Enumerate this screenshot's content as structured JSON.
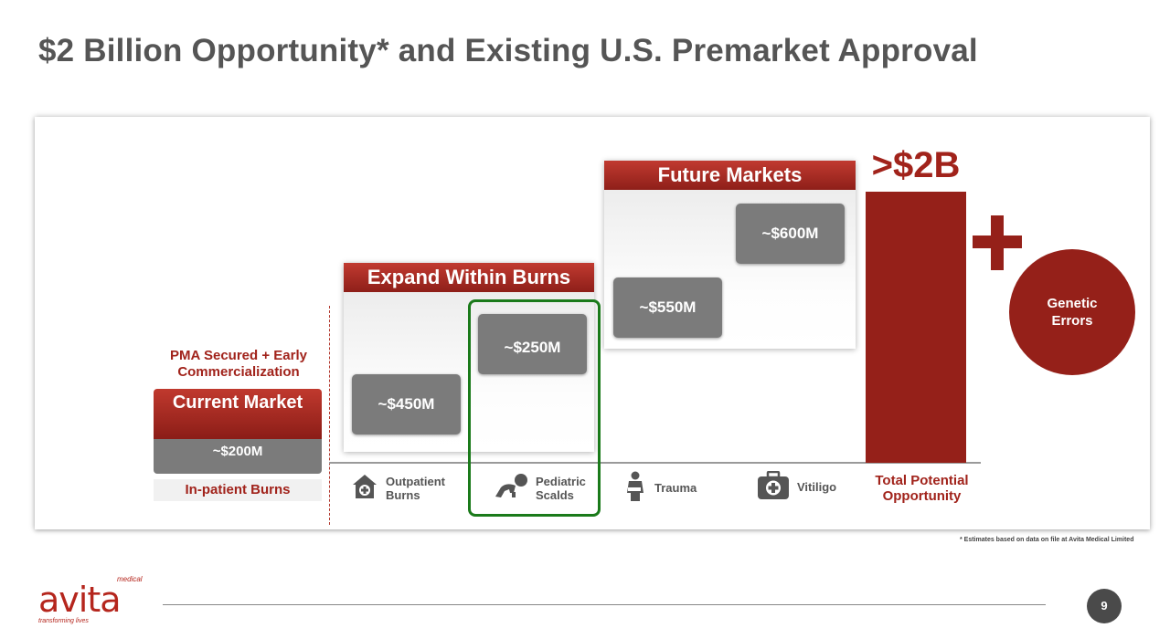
{
  "title": "$2 Billion Opportunity* and Existing U.S. Premarket Approval",
  "current_market": {
    "pma_note": "PMA Secured + Early Commercialization",
    "header": "Current Market",
    "value": "~$200M",
    "label": "In-patient Burns"
  },
  "expand_within_burns": {
    "header": "Expand Within Burns",
    "outpatient_value": "~$450M",
    "pediatric_value": "~$250M"
  },
  "future_markets": {
    "header": "Future Markets",
    "trauma_value": "~$550M",
    "vitiligo_value": "~$600M"
  },
  "categories": {
    "outpatient": "Outpatient Burns",
    "pediatric": "Pediatric Scalds",
    "trauma": "Trauma",
    "vitiligo": "Vitiligo"
  },
  "total": {
    "value": ">$2B",
    "caption": "Total Potential Opportunity"
  },
  "genetic_errors": "Genetic Errors",
  "footnote": "* Estimates based on data on file at Avita Medical Limited",
  "logo": {
    "word": "avita",
    "superscript": "medical",
    "tagline": "transforming lives"
  },
  "page_number": "9",
  "colors": {
    "brand_red": "#a1231b",
    "bar_red": "#952019",
    "value_grey": "#7b7b7b",
    "highlight_green": "#1a7a1a"
  },
  "icons": {
    "outpatient": "clinic-house-icon",
    "pediatric": "crawling-baby-icon",
    "trauma": "injured-person-icon",
    "vitiligo": "first-aid-kit-icon"
  }
}
